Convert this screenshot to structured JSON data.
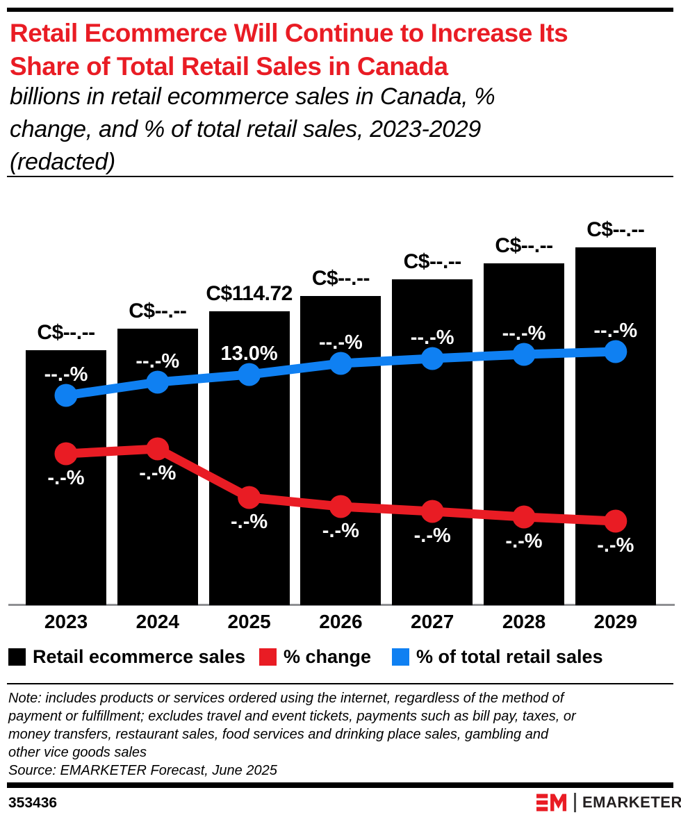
{
  "header": {
    "title_lines": [
      "Retail Ecommerce Will Continue to Increase Its",
      "Share of Total Retail Sales in Canada"
    ],
    "subtitle_lines": [
      "billions in retail ecommerce sales in Canada, %",
      "change, and % of total retail sales, 2023-2029",
      "(redacted)"
    ]
  },
  "chart_data": {
    "type": "bar",
    "title": "Retail Ecommerce Will Continue to Increase Its Share of Total Retail Sales in Canada",
    "subtitle": "billions in retail ecommerce sales in Canada, % change, and % of total retail sales, 2023-2029 (redacted)",
    "categories": [
      "2023",
      "2024",
      "2025",
      "2026",
      "2027",
      "2028",
      "2029"
    ],
    "series": [
      {
        "name": "Retail ecommerce sales",
        "type": "bar",
        "color": "#000000",
        "unit": "C$ billions",
        "data_labels": [
          "C$--.--",
          "C$--.--",
          "C$114.72",
          "C$--.--",
          "C$--.--",
          "C$--.--",
          "C$--.--"
        ],
        "known_values": {
          "2025": 114.72
        },
        "redacted": true
      },
      {
        "name": "% change",
        "type": "line",
        "color": "#e91c24",
        "unit": "%",
        "data_labels": [
          "-.-%",
          "-.-%",
          "-.-%",
          "-.-%",
          "-.-%",
          "-.-%",
          "-.-%"
        ],
        "known_values": {},
        "redacted": true
      },
      {
        "name": "% of total retail sales",
        "type": "line",
        "color": "#0f80f2",
        "unit": "%",
        "data_labels": [
          "--.-%",
          "--.-%",
          "13.0%",
          "--.-%",
          "--.-%",
          "--.-%",
          "--.-%"
        ],
        "known_values": {
          "2025": 13.0
        },
        "redacted": true
      }
    ],
    "legend_position": "bottom",
    "axes": {
      "x_ticks": [
        "2023",
        "2024",
        "2025",
        "2026",
        "2027",
        "2028",
        "2029"
      ],
      "y_axis_visible": false,
      "grid": false
    }
  },
  "legend": {
    "items": [
      {
        "label": "Retail ecommerce sales",
        "color": "#000000"
      },
      {
        "label": "% change",
        "color": "#e91c24"
      },
      {
        "label": "% of total retail sales",
        "color": "#0f80f2"
      }
    ]
  },
  "notes": {
    "lines": [
      "Note: includes products or services ordered using the internet, regardless of the method of",
      "payment or fulfillment; excludes travel and event tickets, payments such as bill pay, taxes, or",
      "money transfers, restaurant sales, food services and drinking place sales, gambling and",
      "other vice goods sales"
    ],
    "source": "Source: EMARKETER Forecast, June 2025"
  },
  "footer": {
    "chart_id": "353436",
    "brand": "EMARKETER",
    "logo_mark": "EM"
  }
}
